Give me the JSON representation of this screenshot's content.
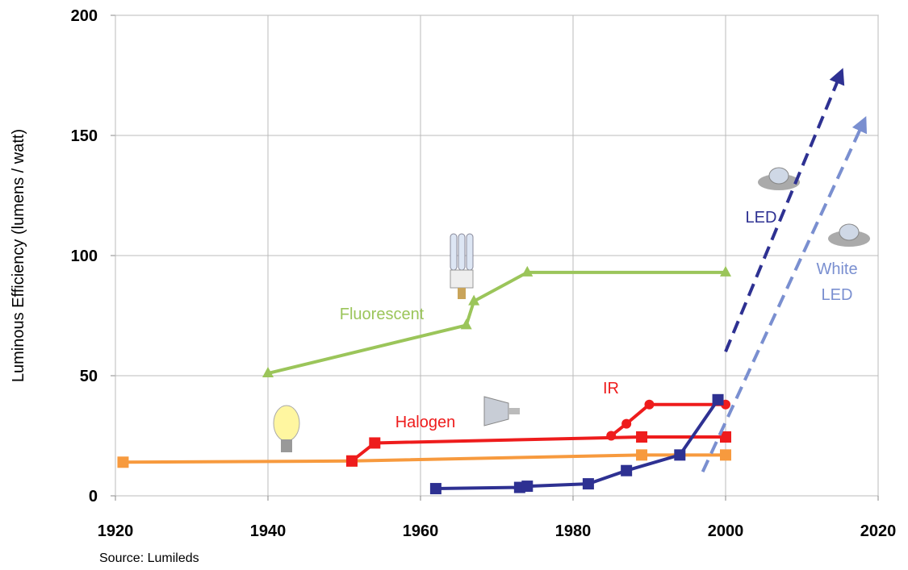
{
  "chart_data": {
    "type": "line",
    "y_label": "Luminous Efficiency (lumens / watt)",
    "source": "Source: Lumileds",
    "xlim": [
      1920,
      2020
    ],
    "xticks": [
      1920,
      1940,
      1960,
      1980,
      2000,
      2020
    ],
    "ylim": [
      0,
      200
    ],
    "yticks": [
      0,
      50,
      100,
      150,
      200
    ],
    "grid": true,
    "series": [
      {
        "color": "#f79a3e",
        "marker": "square",
        "x": [
          1921,
          1951,
          1989,
          2000
        ],
        "values": [
          14,
          14.5,
          17,
          17
        ]
      },
      {
        "name": "Halogen",
        "color": "#ee1c1c",
        "marker": "square",
        "x": [
          1951,
          1954,
          1989,
          2000
        ],
        "values": [
          14.5,
          22,
          24.5,
          24.5
        ]
      },
      {
        "name": "IR",
        "color": "#ee1c1c",
        "marker": "circle",
        "x": [
          1985,
          1987,
          1990,
          2000
        ],
        "values": [
          25,
          30,
          38,
          38
        ]
      },
      {
        "name": "Fluorescent",
        "color": "#9bc55a",
        "marker": "triangle",
        "x": [
          1940,
          1966,
          1967,
          1974,
          2000
        ],
        "values": [
          51,
          71,
          81,
          93,
          93
        ]
      },
      {
        "color": "#2e3192",
        "marker": "square",
        "x": [
          1962,
          1973,
          1974,
          1982,
          1987,
          1994,
          1999
        ],
        "values": [
          3,
          3.5,
          4,
          5,
          10.5,
          17,
          40
        ]
      },
      {
        "name": "LED",
        "color": "#2e3192",
        "dashed": true,
        "arrow": true,
        "x": [
          2000,
          2015
        ],
        "values": [
          60,
          175
        ]
      },
      {
        "name": "White LED",
        "color": "#7a8fd0",
        "dashed": true,
        "arrow": true,
        "x": [
          1997,
          2018
        ],
        "values": [
          10,
          155
        ]
      }
    ]
  }
}
